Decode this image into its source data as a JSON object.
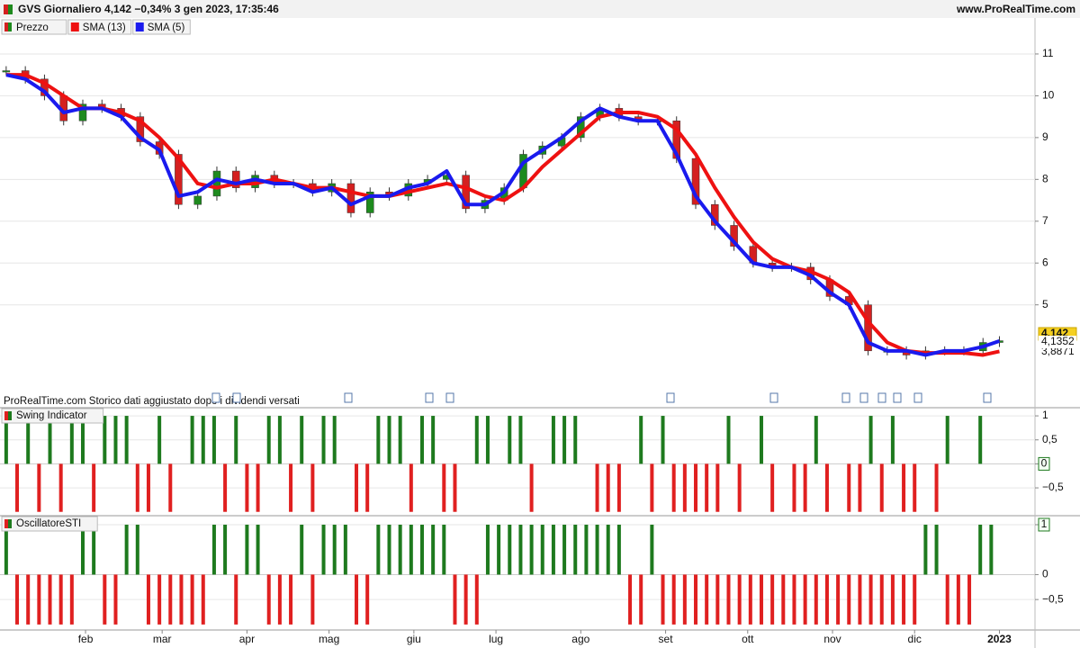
{
  "header": {
    "title": "GVS Giornaliero 4,142 −0,34% 3 gen 2023, 17:35:46",
    "site": "www.ProRealTime.com",
    "note": "ProRealTime.com Storico dati aggiustato dopo i dividendi versati"
  },
  "chart_data": [
    {
      "type": "candlestick",
      "up_color": "#1e8a1e",
      "down_color": "#d42020",
      "x": [
        3,
        10,
        17,
        24,
        31,
        38,
        45,
        52,
        59,
        66,
        73,
        80,
        87,
        94,
        101,
        108,
        115,
        122,
        129,
        136,
        143,
        150,
        157,
        164,
        171,
        178,
        185,
        192,
        199,
        206,
        213,
        220,
        227,
        234,
        241,
        248,
        255,
        262,
        269,
        276,
        283,
        290,
        297,
        304,
        311,
        318,
        325,
        332,
        339,
        346,
        353,
        360,
        366
      ],
      "series": [
        {
          "name": "Prezzo",
          "color": "#1e8a1e",
          "last_value_label": "4,142",
          "values": [
            10.6,
            10.4,
            10.0,
            9.4,
            9.8,
            9.7,
            9.5,
            8.9,
            8.6,
            7.4,
            7.6,
            8.2,
            7.8,
            8.1,
            7.9,
            7.9,
            7.7,
            7.9,
            7.2,
            7.7,
            7.6,
            7.9,
            8.0,
            8.1,
            7.3,
            7.5,
            7.8,
            8.6,
            8.8,
            9.0,
            9.5,
            9.7,
            9.5,
            9.4,
            9.4,
            8.5,
            7.4,
            6.9,
            6.4,
            6.0,
            5.9,
            5.9,
            5.6,
            5.2,
            5.0,
            3.9,
            3.9,
            3.8,
            3.9,
            3.9,
            3.9,
            4.1,
            4.142
          ]
        },
        {
          "name": "SMA (13)",
          "color": "#ee1111",
          "last_value_label": "3,8871",
          "values": [
            10.5,
            10.5,
            10.3,
            10.0,
            9.7,
            9.7,
            9.6,
            9.4,
            9.0,
            8.5,
            7.9,
            7.8,
            7.9,
            7.9,
            8.0,
            7.9,
            7.8,
            7.8,
            7.7,
            7.6,
            7.6,
            7.7,
            7.8,
            7.9,
            7.8,
            7.6,
            7.5,
            7.8,
            8.3,
            8.7,
            9.1,
            9.5,
            9.6,
            9.6,
            9.5,
            9.2,
            8.6,
            7.8,
            7.1,
            6.5,
            6.1,
            5.9,
            5.8,
            5.6,
            5.3,
            4.6,
            4.1,
            3.9,
            3.85,
            3.85,
            3.85,
            3.8,
            3.887
          ]
        },
        {
          "name": "SMA (5)",
          "color": "#1a1aee",
          "last_value_label": "4,1352",
          "values": [
            10.5,
            10.4,
            10.1,
            9.6,
            9.7,
            9.7,
            9.5,
            9.0,
            8.7,
            7.6,
            7.7,
            8.0,
            7.9,
            8.0,
            7.9,
            7.9,
            7.7,
            7.8,
            7.4,
            7.6,
            7.6,
            7.8,
            7.9,
            8.2,
            7.4,
            7.4,
            7.7,
            8.4,
            8.7,
            9.0,
            9.4,
            9.7,
            9.5,
            9.4,
            9.4,
            8.6,
            7.6,
            7.0,
            6.5,
            6.0,
            5.9,
            5.9,
            5.7,
            5.3,
            5.0,
            4.1,
            3.9,
            3.9,
            3.8,
            3.9,
            3.9,
            4.0,
            4.135
          ]
        }
      ],
      "xlim": [
        0.74,
        379
      ],
      "ylim": [
        2.54,
        11.86
      ],
      "yticks": [
        5,
        6,
        7,
        8,
        9,
        10,
        11
      ],
      "grid": true
    },
    {
      "type": "bar",
      "title": "Swing Indicator",
      "up_color": "#1e7a1e",
      "down_color": "#e02020",
      "x": [
        3,
        7,
        11,
        15,
        19,
        23,
        27,
        31,
        35,
        39,
        43,
        47,
        51,
        55,
        59,
        63,
        67,
        71,
        75,
        79,
        83,
        87,
        91,
        95,
        99,
        103,
        107,
        111,
        115,
        119,
        123,
        127,
        131,
        135,
        139,
        143,
        147,
        151,
        155,
        159,
        163,
        167,
        171,
        175,
        179,
        183,
        187,
        191,
        195,
        199,
        203,
        207,
        211,
        215,
        219,
        223,
        227,
        231,
        235,
        239,
        243,
        247,
        251,
        255,
        259,
        263,
        267,
        271,
        275,
        279,
        283,
        287,
        291,
        295,
        299,
        303,
        307,
        311,
        315,
        319,
        323,
        327,
        331,
        335,
        339,
        343,
        347,
        351,
        355,
        359,
        363
      ],
      "values": [
        1,
        -1,
        1,
        -1,
        1,
        -1,
        1,
        1,
        -1,
        1,
        1,
        1,
        -1,
        -1,
        1,
        -1,
        0,
        1,
        1,
        1,
        -1,
        1,
        -1,
        -1,
        1,
        1,
        -1,
        1,
        -1,
        1,
        1,
        0,
        -1,
        -1,
        1,
        1,
        1,
        -1,
        1,
        1,
        -1,
        -1,
        0,
        1,
        1,
        0,
        1,
        1,
        -1,
        0,
        1,
        1,
        1,
        0,
        -1,
        -1,
        -1,
        0,
        1,
        -1,
        1,
        -1,
        -1,
        -1,
        -1,
        -1,
        1,
        -1,
        0,
        1,
        -1,
        0,
        -1,
        -1,
        1,
        -1,
        0,
        -1,
        -1,
        1,
        -1,
        1,
        -1,
        -1,
        0,
        -1,
        1,
        0,
        0,
        1,
        0
      ],
      "xlim": [
        0.74,
        379
      ],
      "ylim": [
        -1.08,
        1.17
      ],
      "yticks": [
        1,
        {
          "value": 0.5,
          "label": "0,5"
        },
        0,
        {
          "value": -0.5,
          "label": "−0,5"
        }
      ]
    },
    {
      "type": "bar",
      "title": "OscillatoreSTI",
      "up_color": "#1e7a1e",
      "down_color": "#e02020",
      "x": [
        3,
        7,
        11,
        15,
        19,
        23,
        27,
        31,
        35,
        39,
        43,
        47,
        51,
        55,
        59,
        63,
        67,
        71,
        75,
        79,
        83,
        87,
        91,
        95,
        99,
        103,
        107,
        111,
        115,
        119,
        123,
        127,
        131,
        135,
        139,
        143,
        147,
        151,
        155,
        159,
        163,
        167,
        171,
        175,
        179,
        183,
        187,
        191,
        195,
        199,
        203,
        207,
        211,
        215,
        219,
        223,
        227,
        231,
        235,
        239,
        243,
        247,
        251,
        255,
        259,
        263,
        267,
        271,
        275,
        279,
        283,
        287,
        291,
        295,
        299,
        303,
        307,
        311,
        315,
        319,
        323,
        327,
        331,
        335,
        339,
        343,
        347,
        351,
        355,
        359,
        363
      ],
      "values": [
        1,
        -1,
        -1,
        -1,
        -1,
        -1,
        -1,
        1,
        1,
        -1,
        -1,
        1,
        1,
        -1,
        -1,
        -1,
        -1,
        -1,
        -1,
        1,
        1,
        -1,
        1,
        1,
        -1,
        -1,
        -1,
        1,
        -1,
        1,
        1,
        1,
        -1,
        -1,
        1,
        1,
        1,
        1,
        1,
        1,
        1,
        -1,
        -1,
        -1,
        1,
        1,
        1,
        1,
        1,
        1,
        1,
        1,
        1,
        1,
        1,
        1,
        1,
        -1,
        -1,
        1,
        -1,
        -1,
        -1,
        -1,
        -1,
        -1,
        -1,
        -1,
        -1,
        -1,
        -1,
        -1,
        -1,
        -1,
        -1,
        -1,
        -1,
        -1,
        -1,
        -1,
        -1,
        -1,
        -1,
        -1,
        1,
        1,
        -1,
        -1,
        -1,
        1,
        1
      ],
      "xlim": [
        0.74,
        379
      ],
      "ylim": [
        -1.11,
        1.18
      ],
      "yticks": [
        1,
        0,
        {
          "value": -0.5,
          "label": "−0,5"
        }
      ],
      "xticks": [
        {
          "value": 32,
          "label": "feb"
        },
        {
          "value": 60,
          "label": "mar"
        },
        {
          "value": 91,
          "label": "apr"
        },
        {
          "value": 121,
          "label": "mag"
        },
        {
          "value": 152,
          "label": "giu"
        },
        {
          "value": 182,
          "label": "lug"
        },
        {
          "value": 213,
          "label": "ago"
        },
        {
          "value": 244,
          "label": "set"
        },
        {
          "value": 274,
          "label": "ott"
        },
        {
          "value": 305,
          "label": "nov"
        },
        {
          "value": 335,
          "label": "dic"
        },
        {
          "value": 366,
          "label": "2023"
        }
      ]
    }
  ]
}
